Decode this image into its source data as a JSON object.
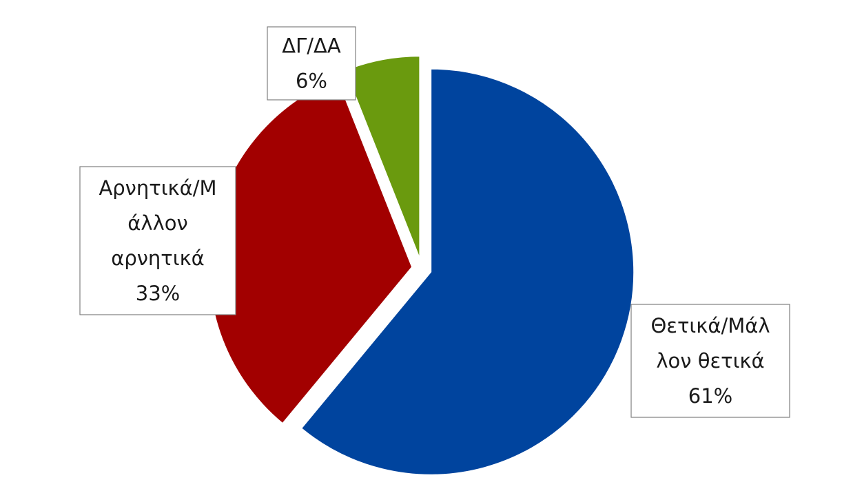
{
  "chart_data": {
    "type": "pie",
    "title": "",
    "start": "12 o'clock, clockwise",
    "exploded": true,
    "slices": [
      {
        "name": "Θετικά/Μάλλον θετικά",
        "value": 61,
        "percent_label": "61%",
        "color": "#00449E",
        "label_lines": [
          "Θετικά/Μάλ",
          "λον θετικά",
          "61%"
        ]
      },
      {
        "name": "Αρνητικά/Μάλλον αρνητικά",
        "value": 33,
        "percent_label": "33%",
        "color": "#A20000",
        "label_lines": [
          "Αρνητικά/Μ",
          "άλλον",
          "αρνητικά",
          "33%"
        ]
      },
      {
        "name": "ΔΓ/ΔΑ",
        "value": 6,
        "percent_label": "6%",
        "color": "#6A9A0E",
        "label_lines": [
          "ΔΓ/ΔΑ",
          "6%"
        ]
      }
    ]
  }
}
